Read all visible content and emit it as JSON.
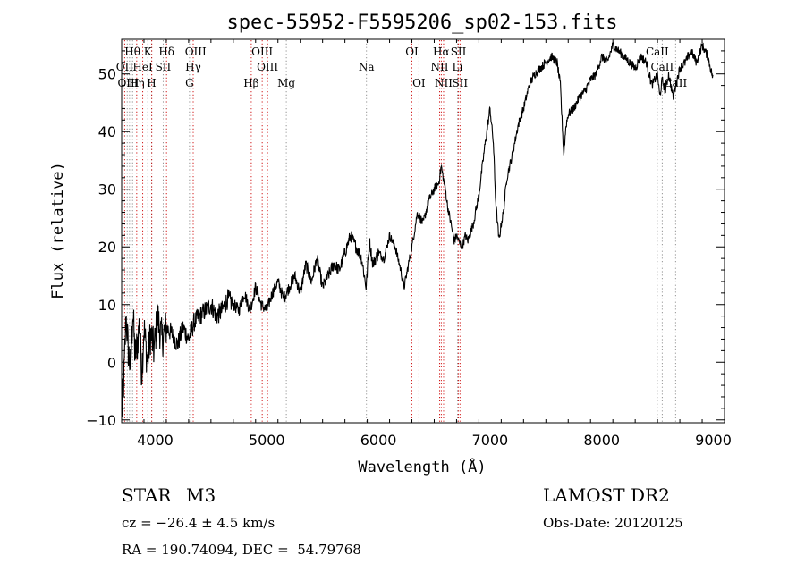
{
  "chart_data": {
    "type": "line",
    "title": "spec-55952-F5595206_sp02-153.fits",
    "xlabel": "Wavelength (Å)",
    "ylabel": "Flux (relative)",
    "xlim": [
      3700,
      9100
    ],
    "ylim": [
      -10.5,
      56
    ],
    "xticks": [
      4000,
      5000,
      6000,
      7000,
      8000,
      9000
    ],
    "yticks": [
      -10,
      0,
      10,
      20,
      30,
      40,
      50
    ],
    "grid": false,
    "line_color": "#000000",
    "marker_color": "#cc0000",
    "series": [
      {
        "x": [
          3700,
          3720,
          3740,
          3760,
          3780,
          3800,
          3820,
          3840,
          3860,
          3880,
          3900,
          3930,
          3960,
          3990,
          4020,
          4060,
          4100,
          4150,
          4200,
          4250,
          4300,
          4350,
          4400,
          4450,
          4500,
          4550,
          4600,
          4650,
          4700,
          4750,
          4800,
          4850,
          4900,
          4950,
          5000,
          5050,
          5100,
          5150,
          5200,
          5250,
          5300,
          5350,
          5400,
          5450,
          5500,
          5550,
          5600,
          5650,
          5700,
          5750,
          5800,
          5850,
          5890,
          5920,
          5950,
          6000,
          6050,
          6100,
          6150,
          6200,
          6230,
          6260,
          6300,
          6350,
          6400,
          6450,
          6500,
          6540,
          6563,
          6580,
          6600,
          6620,
          6650,
          6680,
          6700,
          6720,
          6750,
          6780,
          6800,
          6850,
          6900,
          6950,
          7000,
          7030,
          7050,
          7080,
          7100,
          7120,
          7150,
          7200,
          7250,
          7300,
          7350,
          7400,
          7450,
          7500,
          7550,
          7600,
          7630,
          7650,
          7660,
          7680,
          7700,
          7750,
          7800,
          7850,
          7900,
          7950,
          8000,
          8050,
          8100,
          8150,
          8200,
          8250,
          8300,
          8350,
          8400,
          8450,
          8500,
          8520,
          8542,
          8570,
          8600,
          8640,
          8662,
          8700,
          8750,
          8800,
          8850,
          8900,
          8950,
          9000
        ],
        "y": [
          -9,
          -3,
          8,
          2,
          -1,
          9,
          1,
          3,
          7,
          -2,
          6,
          0,
          5,
          2,
          8,
          4,
          6,
          5,
          3,
          6,
          4,
          7,
          8,
          9,
          10,
          8,
          9,
          11,
          10,
          9,
          12,
          9,
          13,
          10,
          9,
          12,
          14,
          11,
          13,
          15,
          12,
          17,
          14,
          18,
          13,
          15,
          17,
          16,
          19,
          22,
          20,
          18,
          13,
          21,
          17,
          19,
          18,
          22,
          20,
          16,
          13,
          16,
          20,
          26,
          24,
          28,
          30,
          31,
          34,
          32,
          30,
          27,
          24,
          21,
          22,
          21,
          20,
          22,
          21,
          24,
          29,
          37,
          44,
          38,
          28,
          21,
          24,
          26,
          32,
          36,
          41,
          44,
          48,
          50,
          51,
          52,
          53,
          52,
          48,
          40,
          36,
          41,
          43,
          44,
          46,
          47,
          49,
          50,
          53,
          52,
          55,
          54,
          53,
          52,
          51,
          53,
          52,
          48,
          50,
          46,
          49,
          47,
          50,
          46,
          48,
          51,
          52,
          54,
          52,
          55,
          53,
          49
        ]
      }
    ],
    "lines": {
      "red": [
        3727,
        3835,
        3889,
        3970,
        4102,
        4341,
        4861,
        4959,
        5007,
        6300,
        6363,
        6548,
        6563,
        6584,
        6717,
        6731
      ],
      "gray": [
        3750,
        3771,
        3798,
        3934,
        3968,
        4072,
        4308,
        5175,
        5893,
        6708,
        8498,
        8542,
        8662
      ]
    },
    "labels": [
      {
        "text": "Hθ",
        "x": 3797,
        "row": 1
      },
      {
        "text": "K",
        "x": 3934,
        "row": 1
      },
      {
        "text": "Hδ",
        "x": 4102,
        "row": 1
      },
      {
        "text": "OIII",
        "x": 4363,
        "row": 1
      },
      {
        "text": "OIII",
        "x": 4959,
        "row": 1
      },
      {
        "text": "OI",
        "x": 6300,
        "row": 1
      },
      {
        "text": "Hα",
        "x": 6563,
        "row": 1
      },
      {
        "text": "SII",
        "x": 6717,
        "row": 1
      },
      {
        "text": "CaII",
        "x": 8498,
        "row": 1
      },
      {
        "text": "OII",
        "x": 3727,
        "row": 2
      },
      {
        "text": "HeI",
        "x": 3889,
        "row": 2
      },
      {
        "text": "SII",
        "x": 4072,
        "row": 2
      },
      {
        "text": "Hγ",
        "x": 4341,
        "row": 2
      },
      {
        "text": "OIII",
        "x": 5007,
        "row": 2
      },
      {
        "text": "Na",
        "x": 5893,
        "row": 2
      },
      {
        "text": "NII",
        "x": 6548,
        "row": 2
      },
      {
        "text": "Li",
        "x": 6708,
        "row": 2
      },
      {
        "text": "CaII",
        "x": 8542,
        "row": 2
      },
      {
        "text": "OIII",
        "x": 3760,
        "row": 3
      },
      {
        "text": "Hη",
        "x": 3835,
        "row": 3
      },
      {
        "text": "H",
        "x": 3968,
        "row": 3
      },
      {
        "text": "G",
        "x": 4308,
        "row": 3
      },
      {
        "text": "Hβ",
        "x": 4861,
        "row": 3
      },
      {
        "text": "Mg",
        "x": 5175,
        "row": 3
      },
      {
        "text": "OI",
        "x": 6363,
        "row": 3
      },
      {
        "text": "NII",
        "x": 6584,
        "row": 3
      },
      {
        "text": "SII",
        "x": 6731,
        "row": 3
      },
      {
        "text": "CaII",
        "x": 8662,
        "row": 3
      }
    ]
  },
  "info": {
    "object_class": "STAR",
    "subclass": "M3",
    "survey": "LAMOST DR2",
    "cz": "cz = −26.4 ± 4.5 km/s",
    "obs_date": "Obs-Date: 20120125",
    "coords": "RA = 190.74094, DEC =  54.79768"
  }
}
